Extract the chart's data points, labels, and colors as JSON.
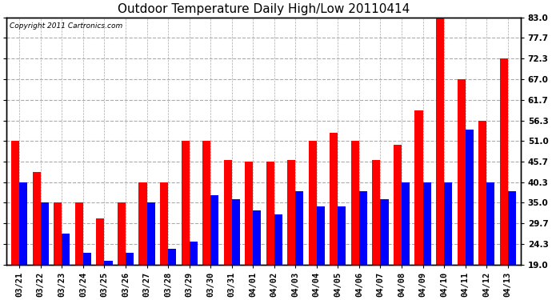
{
  "title": "Outdoor Temperature Daily High/Low 20110414",
  "copyright": "Copyright 2011 Cartronics.com",
  "categories": [
    "03/21",
    "03/22",
    "03/23",
    "03/24",
    "03/25",
    "03/26",
    "03/27",
    "03/28",
    "03/29",
    "03/30",
    "03/31",
    "04/01",
    "04/02",
    "04/03",
    "04/04",
    "04/05",
    "04/06",
    "04/07",
    "04/08",
    "04/09",
    "04/10",
    "04/11",
    "04/12",
    "04/13"
  ],
  "highs": [
    51.0,
    43.0,
    35.0,
    35.0,
    31.0,
    35.0,
    40.3,
    40.3,
    51.0,
    51.0,
    46.0,
    45.7,
    45.7,
    46.0,
    51.0,
    53.0,
    51.0,
    46.0,
    50.0,
    59.0,
    83.0,
    67.0,
    56.3,
    72.3
  ],
  "lows": [
    40.3,
    35.0,
    27.0,
    22.0,
    20.0,
    22.0,
    35.0,
    23.0,
    25.0,
    37.0,
    36.0,
    33.0,
    32.0,
    38.0,
    34.0,
    34.0,
    38.0,
    36.0,
    40.3,
    40.3,
    40.3,
    54.0,
    40.3,
    38.0
  ],
  "high_color": "#ff0000",
  "low_color": "#0000ff",
  "bg_color": "#ffffff",
  "grid_color": "#aaaaaa",
  "yticks": [
    19.0,
    24.3,
    29.7,
    35.0,
    40.3,
    45.7,
    51.0,
    56.3,
    61.7,
    67.0,
    72.3,
    77.7,
    83.0
  ],
  "ylim": [
    19.0,
    83.0
  ],
  "bar_width": 0.38,
  "title_fontsize": 11,
  "tick_fontsize": 7.5,
  "copyright_fontsize": 6.5
}
